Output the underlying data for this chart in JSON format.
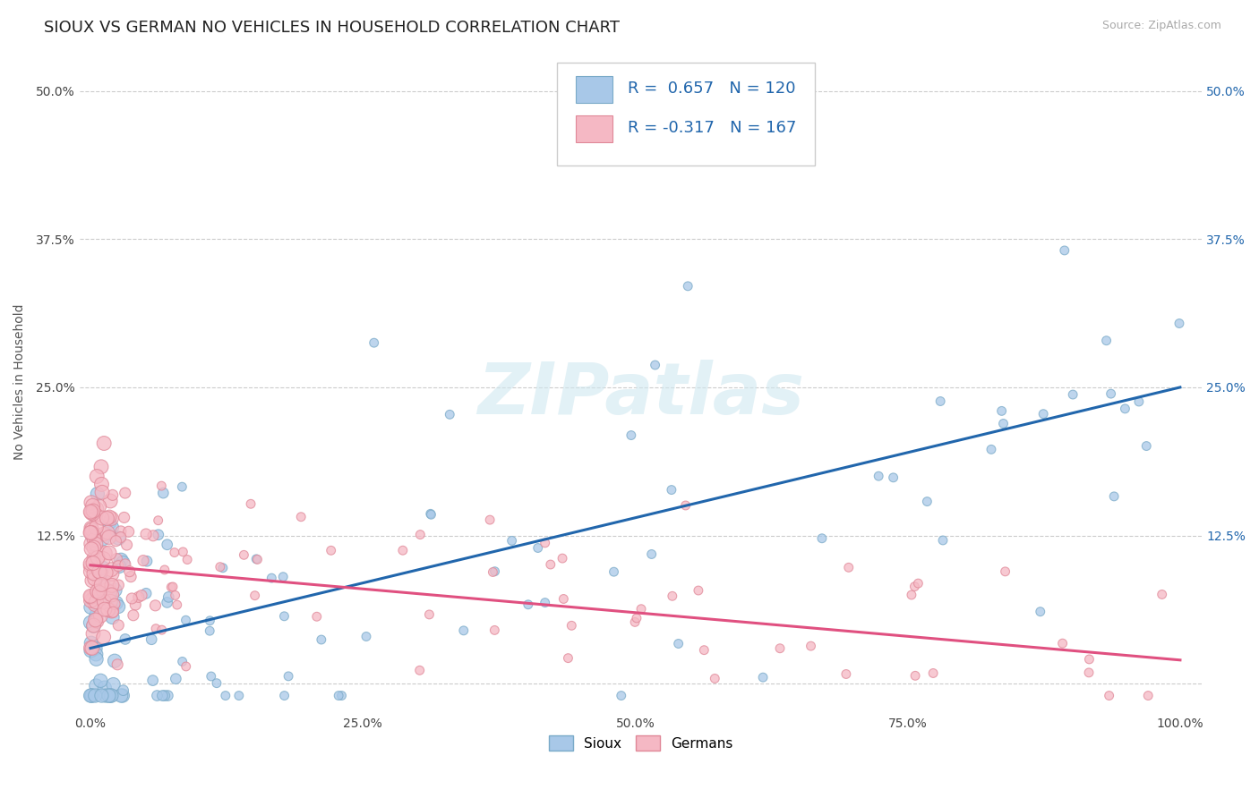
{
  "title": "SIOUX VS GERMAN NO VEHICLES IN HOUSEHOLD CORRELATION CHART",
  "source_text": "Source: ZipAtlas.com",
  "ylabel": "No Vehicles in Household",
  "xlabel": "",
  "sioux_R": 0.657,
  "sioux_N": 120,
  "german_R": -0.317,
  "german_N": 167,
  "sioux_color": "#a8c8e8",
  "german_color": "#f5b8c4",
  "sioux_line_color": "#2166ac",
  "german_line_color": "#e05080",
  "sioux_edge_color": "#7aaac8",
  "german_edge_color": "#e08898",
  "background_color": "#ffffff",
  "watermark_text": "ZIPatlas",
  "title_fontsize": 13,
  "axis_label_fontsize": 10,
  "tick_fontsize": 10,
  "legend_fontsize": 13,
  "right_tick_color": "#2166ac",
  "grid_color": "#cccccc",
  "sioux_line_intercept": 0.03,
  "sioux_line_slope": 0.22,
  "german_line_intercept": 0.1,
  "german_line_slope": -0.08
}
